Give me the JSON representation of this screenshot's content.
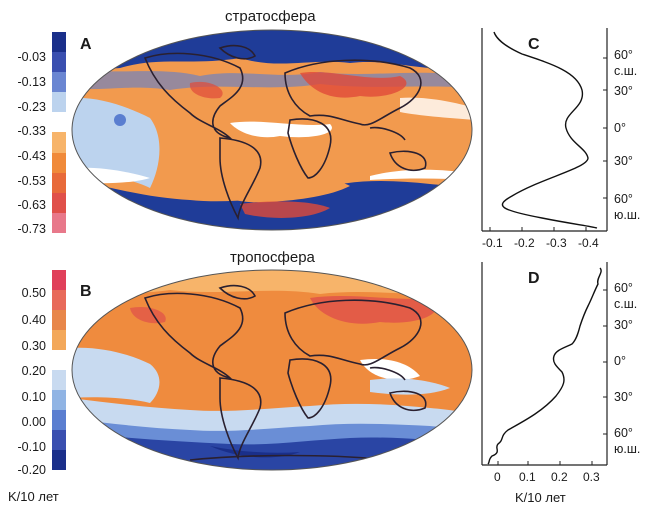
{
  "panel_a": {
    "title": "стратосфера",
    "label": "A",
    "colorbar_ticks": [
      "-0.03",
      "-0.13",
      "-0.23",
      "-0.33",
      "-0.43",
      "-0.53",
      "-0.63",
      "-0.73"
    ],
    "colorbar_colors": [
      "#1a2f8a",
      "#3a4fb0",
      "#6a86d2",
      "#bcd3ee",
      "#ffffff",
      "#f7b46a",
      "#f08a3a",
      "#e86a3a",
      "#e0504a",
      "#e8788a"
    ]
  },
  "panel_b": {
    "title": "тропосфера",
    "label": "B",
    "colorbar_ticks": [
      "0.50",
      "0.40",
      "0.30",
      "0.20",
      "0.10",
      "0.00",
      "-0.10",
      "-0.20"
    ],
    "colorbar_colors": [
      "#e0405a",
      "#e86a5a",
      "#e8874a",
      "#f3a85a",
      "#ffffff",
      "#c8daf0",
      "#90b4e4",
      "#5a7ed0",
      "#3a4fb0",
      "#1a2f8a"
    ],
    "units": "K/10 лет"
  },
  "panel_c": {
    "label": "C",
    "lat_labels": [
      "60°",
      "с.ш.",
      "30°",
      "0°",
      "30°",
      "60°",
      "ю.ш."
    ],
    "x_ticks": [
      "-0.1",
      "-0.2",
      "-0.3",
      "-0.4"
    ]
  },
  "panel_d": {
    "label": "D",
    "lat_labels": [
      "60°",
      "с.ш.",
      "30°",
      "0°",
      "30°",
      "60°",
      "ю.ш."
    ],
    "x_ticks": [
      "0",
      "0.1",
      "0.2",
      "0.3"
    ],
    "xlabel": "K/10 лет"
  },
  "colors": {
    "land_outline": "#2a2030",
    "warm": "#ef8b3e",
    "cool": "#1c3a9a"
  }
}
